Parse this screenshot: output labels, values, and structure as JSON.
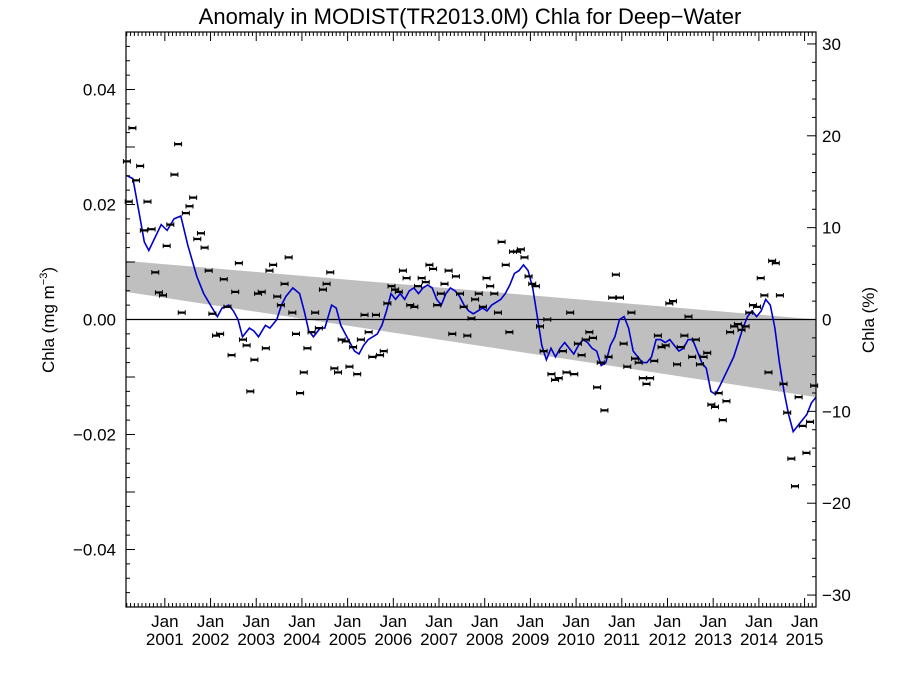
{
  "chart_data": {
    "type": "line",
    "title": "Anomaly in MODIST(TR2013.0M) Chla for Deep−Water",
    "ylabel_left": {
      "base": "Chla (mg m",
      "sup": "−3",
      "close": ")"
    },
    "ylabel_right": "Chla (%)",
    "xlabel": "",
    "x_range": [
      2000.15,
      2015.25
    ],
    "ylim_left": [
      -0.05,
      0.05
    ],
    "ylim_right": [
      -31.3,
      31.3
    ],
    "y_ticks_left": [
      {
        "value": 0.04,
        "label": "0.04"
      },
      {
        "value": 0.02,
        "label": "0.02"
      },
      {
        "value": 0.0,
        "label": "0.00"
      },
      {
        "value": -0.02,
        "label": "−0.02"
      },
      {
        "value": -0.04,
        "label": "−0.04"
      }
    ],
    "y_ticks_right": [
      {
        "value": 30,
        "label": "30"
      },
      {
        "value": 20,
        "label": "20"
      },
      {
        "value": 10,
        "label": "10"
      },
      {
        "value": 0,
        "label": "0"
      },
      {
        "value": -10,
        "label": "−10"
      },
      {
        "value": -20,
        "label": "−20"
      },
      {
        "value": -30,
        "label": "−30"
      }
    ],
    "x_ticks": [
      {
        "value": 2001.0,
        "month": "Jan",
        "year": "2001"
      },
      {
        "value": 2002.0,
        "month": "Jan",
        "year": "2002"
      },
      {
        "value": 2003.0,
        "month": "Jan",
        "year": "2003"
      },
      {
        "value": 2004.0,
        "month": "Jan",
        "year": "2004"
      },
      {
        "value": 2005.0,
        "month": "Jan",
        "year": "2005"
      },
      {
        "value": 2006.0,
        "month": "Jan",
        "year": "2006"
      },
      {
        "value": 2007.0,
        "month": "Jan",
        "year": "2007"
      },
      {
        "value": 2008.0,
        "month": "Jan",
        "year": "2008"
      },
      {
        "value": 2009.0,
        "month": "Jan",
        "year": "2009"
      },
      {
        "value": 2010.0,
        "month": "Jan",
        "year": "2010"
      },
      {
        "value": 2011.0,
        "month": "Jan",
        "year": "2011"
      },
      {
        "value": 2012.0,
        "month": "Jan",
        "year": "2012"
      },
      {
        "value": 2013.0,
        "month": "Jan",
        "year": "2013"
      },
      {
        "value": 2014.0,
        "month": "Jan",
        "year": "2014"
      },
      {
        "value": 2015.0,
        "month": "Jan",
        "year": "2015"
      }
    ],
    "trend_band": {
      "upper": [
        [
          2000.15,
          0.0102
        ],
        [
          2015.25,
          0.0
        ]
      ],
      "lower": [
        [
          2000.15,
          0.0048
        ],
        [
          2015.25,
          -0.0135
        ]
      ]
    },
    "zero_line": 0.0,
    "colors": {
      "smoothed_line": "#0000cc",
      "band": "#bfbfbf",
      "points": "#000000"
    },
    "smoothed_series": [
      [
        2000.17,
        0.025
      ],
      [
        2000.3,
        0.0245
      ],
      [
        2000.45,
        0.018
      ],
      [
        2000.55,
        0.0135
      ],
      [
        2000.65,
        0.012
      ],
      [
        2000.8,
        0.0145
      ],
      [
        2000.92,
        0.0165
      ],
      [
        2001.05,
        0.0155
      ],
      [
        2001.2,
        0.0175
      ],
      [
        2001.35,
        0.018
      ],
      [
        2001.5,
        0.013
      ],
      [
        2001.7,
        0.0075
      ],
      [
        2001.85,
        0.0045
      ],
      [
        2002.0,
        0.0025
      ],
      [
        2002.15,
        0.0005
      ],
      [
        2002.25,
        0.002
      ],
      [
        2002.4,
        0.0025
      ],
      [
        2002.5,
        0.0015
      ],
      [
        2002.6,
        0.0
      ],
      [
        2002.7,
        -0.003
      ],
      [
        2002.85,
        -0.0015
      ],
      [
        2002.95,
        -0.002
      ],
      [
        2003.05,
        -0.003
      ],
      [
        2003.2,
        -0.001
      ],
      [
        2003.3,
        -0.0015
      ],
      [
        2003.45,
        0.0
      ],
      [
        2003.55,
        0.0025
      ],
      [
        2003.65,
        0.004
      ],
      [
        2003.8,
        0.0055
      ],
      [
        2003.95,
        0.0045
      ],
      [
        2004.05,
        0.0015
      ],
      [
        2004.15,
        -0.002
      ],
      [
        2004.25,
        -0.003
      ],
      [
        2004.4,
        -0.0015
      ],
      [
        2004.5,
        -0.0015
      ],
      [
        2004.65,
        0.0025
      ],
      [
        2004.75,
        0.002
      ],
      [
        2004.85,
        -0.001
      ],
      [
        2004.95,
        -0.0025
      ],
      [
        2005.05,
        -0.004
      ],
      [
        2005.15,
        -0.0055
      ],
      [
        2005.25,
        -0.006
      ],
      [
        2005.35,
        -0.0045
      ],
      [
        2005.45,
        -0.0035
      ],
      [
        2005.55,
        -0.003
      ],
      [
        2005.65,
        -0.0025
      ],
      [
        2005.75,
        -0.001
      ],
      [
        2005.85,
        0.0015
      ],
      [
        2005.95,
        0.0045
      ],
      [
        2006.05,
        0.0035
      ],
      [
        2006.15,
        0.0045
      ],
      [
        2006.25,
        0.0035
      ],
      [
        2006.35,
        0.005
      ],
      [
        2006.45,
        0.0055
      ],
      [
        2006.55,
        0.0045
      ],
      [
        2006.65,
        0.0055
      ],
      [
        2006.75,
        0.006
      ],
      [
        2006.85,
        0.0055
      ],
      [
        2006.95,
        0.0035
      ],
      [
        2007.05,
        0.0025
      ],
      [
        2007.15,
        0.0045
      ],
      [
        2007.25,
        0.0055
      ],
      [
        2007.35,
        0.005
      ],
      [
        2007.45,
        0.004
      ],
      [
        2007.55,
        0.0025
      ],
      [
        2007.65,
        0.0015
      ],
      [
        2007.75,
        0.001
      ],
      [
        2007.85,
        0.0015
      ],
      [
        2007.95,
        0.002
      ],
      [
        2008.05,
        0.0015
      ],
      [
        2008.15,
        0.0025
      ],
      [
        2008.25,
        0.003
      ],
      [
        2008.35,
        0.0035
      ],
      [
        2008.45,
        0.0045
      ],
      [
        2008.55,
        0.006
      ],
      [
        2008.65,
        0.008
      ],
      [
        2008.75,
        0.0085
      ],
      [
        2008.85,
        0.0095
      ],
      [
        2008.95,
        0.0085
      ],
      [
        2009.05,
        0.0055
      ],
      [
        2009.15,
        0.0005
      ],
      [
        2009.25,
        -0.0045
      ],
      [
        2009.35,
        -0.007
      ],
      [
        2009.45,
        -0.005
      ],
      [
        2009.55,
        -0.0065
      ],
      [
        2009.65,
        -0.005
      ],
      [
        2009.75,
        -0.004
      ],
      [
        2009.85,
        -0.005
      ],
      [
        2009.95,
        -0.006
      ],
      [
        2010.05,
        -0.0045
      ],
      [
        2010.15,
        -0.0035
      ],
      [
        2010.25,
        -0.004
      ],
      [
        2010.35,
        -0.005
      ],
      [
        2010.45,
        -0.0055
      ],
      [
        2010.55,
        -0.008
      ],
      [
        2010.65,
        -0.0075
      ],
      [
        2010.75,
        -0.0045
      ],
      [
        2010.85,
        -0.003
      ],
      [
        2010.95,
        0.0
      ],
      [
        2011.05,
        0.0005
      ],
      [
        2011.15,
        -0.0015
      ],
      [
        2011.25,
        -0.0055
      ],
      [
        2011.35,
        -0.0065
      ],
      [
        2011.45,
        -0.0075
      ],
      [
        2011.55,
        -0.0075
      ],
      [
        2011.65,
        -0.0065
      ],
      [
        2011.75,
        -0.0035
      ],
      [
        2011.85,
        -0.0035
      ],
      [
        2011.95,
        -0.004
      ],
      [
        2012.05,
        -0.0035
      ],
      [
        2012.15,
        -0.0045
      ],
      [
        2012.25,
        -0.0055
      ],
      [
        2012.35,
        -0.005
      ],
      [
        2012.45,
        -0.0035
      ],
      [
        2012.55,
        -0.0035
      ],
      [
        2012.65,
        -0.0055
      ],
      [
        2012.75,
        -0.0075
      ],
      [
        2012.85,
        -0.0085
      ],
      [
        2012.95,
        -0.0125
      ],
      [
        2013.05,
        -0.013
      ],
      [
        2013.15,
        -0.0115
      ],
      [
        2013.3,
        -0.009
      ],
      [
        2013.45,
        -0.0065
      ],
      [
        2013.55,
        -0.004
      ],
      [
        2013.65,
        -0.0015
      ],
      [
        2013.75,
        0.0005
      ],
      [
        2013.85,
        0.0015
      ],
      [
        2013.95,
        0.0005
      ],
      [
        2014.05,
        0.0015
      ],
      [
        2014.15,
        0.0035
      ],
      [
        2014.25,
        0.0025
      ],
      [
        2014.35,
        -0.0015
      ],
      [
        2014.45,
        -0.0075
      ],
      [
        2014.55,
        -0.0125
      ],
      [
        2014.65,
        -0.0165
      ],
      [
        2014.75,
        -0.0195
      ],
      [
        2014.85,
        -0.0185
      ],
      [
        2014.95,
        -0.0175
      ],
      [
        2015.05,
        -0.0165
      ],
      [
        2015.15,
        -0.0145
      ],
      [
        2015.25,
        -0.0135
      ]
    ],
    "points": [
      [
        2000.17,
        0.0275
      ],
      [
        2000.21,
        0.0205
      ],
      [
        2000.29,
        0.0333
      ],
      [
        2000.37,
        0.0242
      ],
      [
        2000.46,
        0.0267
      ],
      [
        2000.54,
        0.0155
      ],
      [
        2000.62,
        0.0205
      ],
      [
        2000.71,
        0.0157
      ],
      [
        2000.79,
        0.0082
      ],
      [
        2000.87,
        0.0047
      ],
      [
        2000.96,
        0.0042
      ],
      [
        2001.04,
        0.0128
      ],
      [
        2001.12,
        0.0165
      ],
      [
        2001.21,
        0.0252
      ],
      [
        2001.29,
        0.0305
      ],
      [
        2001.37,
        0.0012
      ],
      [
        2001.46,
        0.0185
      ],
      [
        2001.54,
        0.0197
      ],
      [
        2001.62,
        0.0212
      ],
      [
        2001.71,
        0.014
      ],
      [
        2001.79,
        0.015
      ],
      [
        2001.87,
        0.0125
      ],
      [
        2001.96,
        0.0085
      ],
      [
        2002.04,
        0.001
      ],
      [
        2002.12,
        -0.0028
      ],
      [
        2002.21,
        -0.0025
      ],
      [
        2002.29,
        0.007
      ],
      [
        2002.37,
        0.0022
      ],
      [
        2002.46,
        -0.0062
      ],
      [
        2002.54,
        0.0048
      ],
      [
        2002.62,
        0.0098
      ],
      [
        2002.71,
        -0.0035
      ],
      [
        2002.79,
        -0.0045
      ],
      [
        2002.87,
        -0.0125
      ],
      [
        2002.96,
        -0.007
      ],
      [
        2003.04,
        0.0045
      ],
      [
        2003.12,
        0.0048
      ],
      [
        2003.21,
        -0.005
      ],
      [
        2003.29,
        0.0085
      ],
      [
        2003.37,
        0.0095
      ],
      [
        2003.46,
        0.004
      ],
      [
        2003.54,
        0.0025
      ],
      [
        2003.62,
        0.0062
      ],
      [
        2003.71,
        0.0108
      ],
      [
        2003.79,
        0.0012
      ],
      [
        2003.87,
        -0.0025
      ],
      [
        2003.96,
        -0.0128
      ],
      [
        2004.04,
        -0.0092
      ],
      [
        2004.12,
        -0.005
      ],
      [
        2004.21,
        -0.0022
      ],
      [
        2004.29,
        0.0012
      ],
      [
        2004.37,
        -0.0015
      ],
      [
        2004.46,
        0.0052
      ],
      [
        2004.54,
        0.0062
      ],
      [
        2004.62,
        0.0082
      ],
      [
        2004.71,
        -0.0085
      ],
      [
        2004.79,
        -0.0092
      ],
      [
        2004.87,
        -0.0035
      ],
      [
        2004.96,
        -0.0038
      ],
      [
        2005.04,
        -0.0082
      ],
      [
        2005.12,
        -0.0048
      ],
      [
        2005.21,
        -0.0095
      ],
      [
        2005.29,
        -0.0035
      ],
      [
        2005.37,
        0.0008
      ],
      [
        2005.46,
        -0.0022
      ],
      [
        2005.54,
        -0.0065
      ],
      [
        2005.62,
        0.0008
      ],
      [
        2005.71,
        -0.0062
      ],
      [
        2005.79,
        -0.0055
      ],
      [
        2005.87,
        0.0028
      ],
      [
        2005.96,
        0.0058
      ],
      [
        2006.04,
        0.0052
      ],
      [
        2006.12,
        0.0048
      ],
      [
        2006.21,
        0.0085
      ],
      [
        2006.29,
        0.0072
      ],
      [
        2006.37,
        0.0025
      ],
      [
        2006.46,
        0.0022
      ],
      [
        2006.54,
        0.0058
      ],
      [
        2006.62,
        0.0072
      ],
      [
        2006.71,
        0.0065
      ],
      [
        2006.79,
        0.0095
      ],
      [
        2006.87,
        0.0088
      ],
      [
        2006.96,
        0.0025
      ],
      [
        2007.04,
        0.0045
      ],
      [
        2007.12,
        0.0062
      ],
      [
        2007.21,
        0.0085
      ],
      [
        2007.29,
        -0.0025
      ],
      [
        2007.37,
        0.0075
      ],
      [
        2007.46,
        0.0045
      ],
      [
        2007.54,
        0.0022
      ],
      [
        2007.62,
        -0.0028
      ],
      [
        2007.71,
        0.0002
      ],
      [
        2007.79,
        0.0035
      ],
      [
        2007.87,
        0.0045
      ],
      [
        2007.96,
        0.0022
      ],
      [
        2008.04,
        0.0072
      ],
      [
        2008.12,
        0.0058
      ],
      [
        2008.21,
        0.0045
      ],
      [
        2008.29,
        0.0012
      ],
      [
        2008.37,
        0.0135
      ],
      [
        2008.46,
        0.0095
      ],
      [
        2008.54,
        -0.0022
      ],
      [
        2008.62,
        0.0118
      ],
      [
        2008.71,
        0.0118
      ],
      [
        2008.79,
        0.0122
      ],
      [
        2008.87,
        0.0108
      ],
      [
        2008.96,
        0.0075
      ],
      [
        2009.04,
        0.0062
      ],
      [
        2009.12,
        0.0058
      ],
      [
        2009.21,
        -0.0012
      ],
      [
        2009.29,
        -0.0055
      ],
      [
        2009.37,
        0.0
      ],
      [
        2009.46,
        -0.0095
      ],
      [
        2009.54,
        -0.0105
      ],
      [
        2009.62,
        -0.0102
      ],
      [
        2009.71,
        -0.0055
      ],
      [
        2009.79,
        -0.0092
      ],
      [
        2009.87,
        0.0012
      ],
      [
        2009.96,
        -0.0095
      ],
      [
        2010.04,
        -0.0042
      ],
      [
        2010.12,
        -0.0062
      ],
      [
        2010.21,
        -0.0035
      ],
      [
        2010.29,
        -0.0022
      ],
      [
        2010.37,
        -0.0032
      ],
      [
        2010.46,
        -0.0118
      ],
      [
        2010.54,
        -0.0075
      ],
      [
        2010.62,
        -0.0158
      ],
      [
        2010.71,
        -0.0065
      ],
      [
        2010.79,
        0.0038
      ],
      [
        2010.87,
        0.0078
      ],
      [
        2010.96,
        0.0038
      ],
      [
        2011.04,
        -0.0042
      ],
      [
        2011.12,
        -0.0082
      ],
      [
        2011.21,
        0.0012
      ],
      [
        2011.29,
        -0.0068
      ],
      [
        2011.37,
        -0.0075
      ],
      [
        2011.46,
        -0.0102
      ],
      [
        2011.54,
        -0.0112
      ],
      [
        2011.62,
        -0.0102
      ],
      [
        2011.71,
        -0.0072
      ],
      [
        2011.79,
        -0.0028
      ],
      [
        2011.87,
        -0.0048
      ],
      [
        2011.96,
        -0.0045
      ],
      [
        2012.04,
        0.0028
      ],
      [
        2012.12,
        0.0032
      ],
      [
        2012.21,
        -0.0078
      ],
      [
        2012.29,
        -0.0048
      ],
      [
        2012.37,
        -0.0028
      ],
      [
        2012.46,
        0.0005
      ],
      [
        2012.54,
        -0.0065
      ],
      [
        2012.62,
        -0.0035
      ],
      [
        2012.71,
        -0.0078
      ],
      [
        2012.79,
        -0.0065
      ],
      [
        2012.87,
        -0.0058
      ],
      [
        2012.96,
        -0.0148
      ],
      [
        2013.04,
        -0.0152
      ],
      [
        2013.12,
        -0.0128
      ],
      [
        2013.21,
        -0.0175
      ],
      [
        2013.29,
        -0.0142
      ],
      [
        2013.37,
        -0.0022
      ],
      [
        2013.46,
        -0.0012
      ],
      [
        2013.54,
        -0.0008
      ],
      [
        2013.62,
        -0.0018
      ],
      [
        2013.71,
        -0.0012
      ],
      [
        2013.79,
        0.0012
      ],
      [
        2013.87,
        0.0025
      ],
      [
        2013.96,
        0.0022
      ],
      [
        2014.04,
        0.0072
      ],
      [
        2014.12,
        0.0042
      ],
      [
        2014.21,
        -0.0092
      ],
      [
        2014.29,
        0.0102
      ],
      [
        2014.37,
        0.0098
      ],
      [
        2014.46,
        0.0042
      ],
      [
        2014.54,
        -0.0112
      ],
      [
        2014.62,
        -0.0162
      ],
      [
        2014.71,
        -0.0242
      ],
      [
        2014.79,
        -0.029
      ],
      [
        2014.87,
        -0.0135
      ],
      [
        2014.96,
        -0.0185
      ],
      [
        2015.04,
        -0.0232
      ],
      [
        2015.12,
        -0.0178
      ],
      [
        2015.21,
        -0.0115
      ]
    ]
  }
}
